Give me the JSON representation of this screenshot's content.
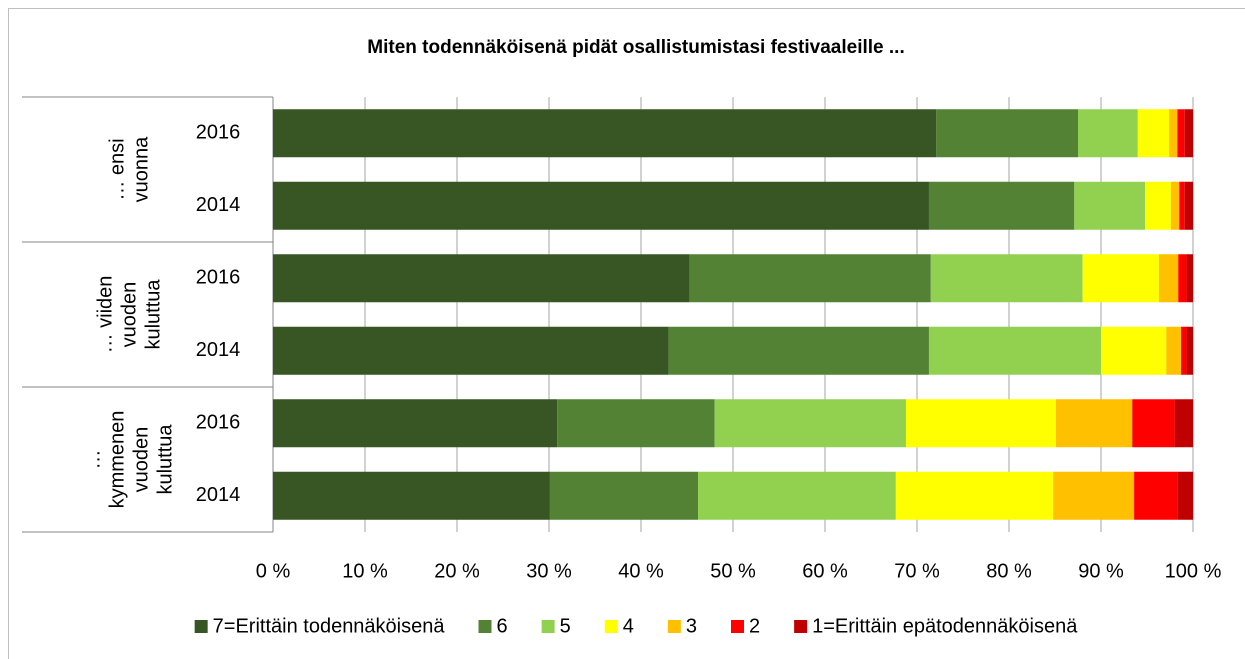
{
  "chart_data": {
    "type": "stacked-bar-horizontal",
    "title": "Miten todennäköisenä pidät osallistumistasi festivaaleille ...",
    "groups": [
      {
        "label": [
          "… ensi",
          "vuonna"
        ]
      },
      {
        "label": [
          "… viiden",
          "vuoden",
          "kuluttua"
        ]
      },
      {
        "label": [
          "…",
          "kymmenen",
          "vuoden",
          "kuluttua"
        ]
      }
    ],
    "categories": [
      "2016",
      "2014",
      "2016",
      "2014",
      "2016",
      "2014"
    ],
    "series": [
      {
        "name": "7=Erittäin todennäköisenä",
        "color": "#375623",
        "values": [
          72.1,
          71.3,
          45.3,
          43.0,
          30.9,
          30.1
        ]
      },
      {
        "name": "6",
        "color": "#548235",
        "values": [
          15.4,
          15.8,
          26.2,
          28.3,
          17.1,
          16.1
        ]
      },
      {
        "name": "5",
        "color": "#92d050",
        "values": [
          6.5,
          7.7,
          16.5,
          18.7,
          20.8,
          21.5
        ]
      },
      {
        "name": "4",
        "color": "#ffff00",
        "values": [
          3.4,
          2.8,
          8.3,
          7.1,
          16.3,
          17.1
        ]
      },
      {
        "name": "3",
        "color": "#ffc000",
        "values": [
          0.9,
          0.9,
          2.1,
          1.6,
          8.3,
          8.8
        ]
      },
      {
        "name": "2",
        "color": "#ff0000",
        "values": [
          0.8,
          0.6,
          0.9,
          0.6,
          4.6,
          4.7
        ]
      },
      {
        "name": "1=Erittäin epätodennäköisenä",
        "color": "#c00000",
        "values": [
          0.9,
          0.9,
          0.7,
          0.7,
          2.0,
          1.7
        ]
      }
    ],
    "xlim": [
      0,
      100
    ],
    "xticks": [
      {
        "value": 0,
        "label": "0 %"
      },
      {
        "value": 10,
        "label": "10 %"
      },
      {
        "value": 20,
        "label": "20 %"
      },
      {
        "value": 30,
        "label": "30 %"
      },
      {
        "value": 40,
        "label": "40 %"
      },
      {
        "value": 50,
        "label": "50 %"
      },
      {
        "value": 60,
        "label": "60 %"
      },
      {
        "value": 70,
        "label": "70 %"
      },
      {
        "value": 80,
        "label": "80 %"
      },
      {
        "value": 90,
        "label": "90 %"
      },
      {
        "value": 100,
        "label": "100 %"
      }
    ],
    "grid": true,
    "legend": "bottom"
  }
}
